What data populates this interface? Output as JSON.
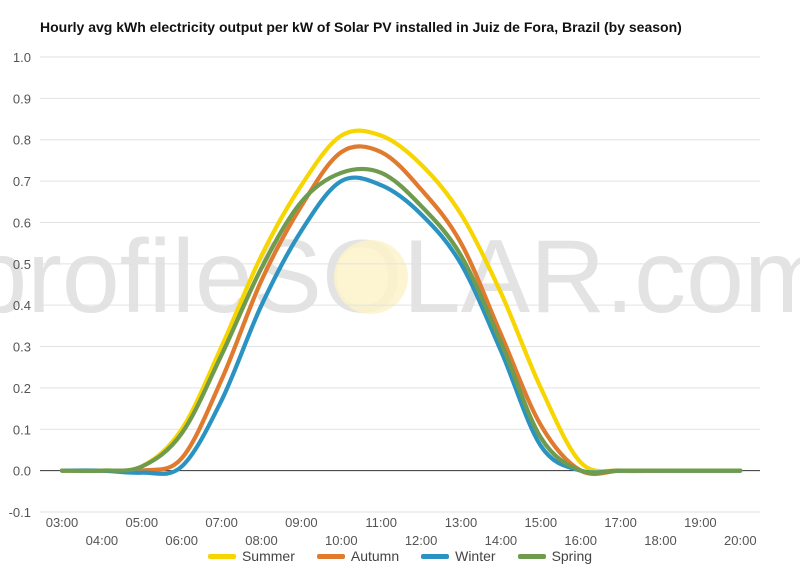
{
  "chart_data": {
    "type": "line",
    "title": "Hourly avg kWh electricity output per kW of Solar PV installed in Juiz de Fora, Brazil (by season)",
    "xlabel": "",
    "ylabel": "",
    "watermark": "profileSOLAR.com",
    "x": [
      "03:00",
      "04:00",
      "05:00",
      "06:00",
      "07:00",
      "08:00",
      "09:00",
      "10:00",
      "11:00",
      "12:00",
      "13:00",
      "14:00",
      "15:00",
      "16:00",
      "17:00",
      "18:00",
      "19:00",
      "20:00"
    ],
    "y_ticks": [
      "1.0",
      "0.9",
      "0.8",
      "0.7",
      "0.6",
      "0.5",
      "0.4",
      "0.3",
      "0.2",
      "0.1",
      "0.0",
      "-0.1"
    ],
    "ylim": [
      -0.1,
      1.0
    ],
    "grid": true,
    "legend_position": "bottom",
    "series": [
      {
        "name": "Summer",
        "color": "#f7d500",
        "values": [
          0.0,
          0.0,
          0.01,
          0.1,
          0.3,
          0.52,
          0.69,
          0.81,
          0.81,
          0.74,
          0.62,
          0.43,
          0.2,
          0.02,
          0.0,
          0.0,
          0.0,
          0.0
        ]
      },
      {
        "name": "Autumn",
        "color": "#e07a2e",
        "values": [
          0.0,
          0.0,
          0.0,
          0.03,
          0.22,
          0.46,
          0.64,
          0.77,
          0.77,
          0.68,
          0.55,
          0.33,
          0.11,
          0.0,
          0.0,
          0.0,
          0.0,
          0.0
        ]
      },
      {
        "name": "Winter",
        "color": "#2a93c1",
        "values": [
          0.0,
          0.0,
          -0.005,
          0.01,
          0.17,
          0.4,
          0.58,
          0.7,
          0.69,
          0.62,
          0.5,
          0.29,
          0.06,
          0.0,
          0.0,
          0.0,
          0.0,
          0.0
        ]
      },
      {
        "name": "Spring",
        "color": "#6e9b4e",
        "values": [
          0.0,
          0.0,
          0.01,
          0.09,
          0.28,
          0.49,
          0.65,
          0.72,
          0.72,
          0.64,
          0.52,
          0.31,
          0.08,
          0.0,
          0.0,
          0.0,
          0.0,
          0.0
        ]
      }
    ]
  }
}
